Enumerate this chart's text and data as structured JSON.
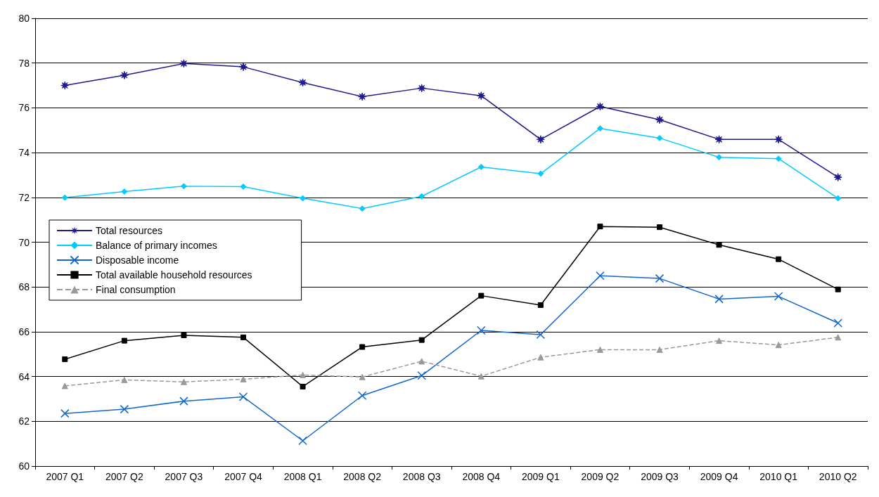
{
  "chart_data": {
    "type": "line",
    "categories": [
      "2007 Q1",
      "2007 Q2",
      "2007 Q3",
      "2007 Q4",
      "2008 Q1",
      "2008 Q2",
      "2008 Q3",
      "2008 Q4",
      "2009 Q1",
      "2009 Q2",
      "2009 Q3",
      "2009 Q4",
      "2010 Q1",
      "2010 Q2"
    ],
    "series": [
      {
        "name": "Total resources",
        "color": "#1f1a8c",
        "marker": "star",
        "values": [
          77.0,
          77.46,
          77.98,
          77.83,
          77.13,
          76.5,
          76.88,
          76.54,
          74.59,
          76.06,
          75.47,
          74.59,
          74.59,
          72.9
        ]
      },
      {
        "name": "Balance of primary incomes",
        "color": "#00ccff",
        "marker": "diamond",
        "values": [
          71.99,
          72.26,
          72.5,
          72.48,
          71.96,
          71.5,
          72.05,
          73.36,
          73.06,
          75.08,
          74.65,
          73.79,
          73.73,
          71.96
        ]
      },
      {
        "name": "Disposable income",
        "color": "#1166cc",
        "marker": "cross",
        "values": [
          62.35,
          62.54,
          62.9,
          63.09,
          61.13,
          63.15,
          64.04,
          66.06,
          65.87,
          68.5,
          68.38,
          67.46,
          67.58,
          66.39
        ]
      },
      {
        "name": "Total available household resources",
        "color": "#000000",
        "marker": "square",
        "values": [
          64.77,
          65.6,
          65.84,
          65.75,
          63.55,
          65.32,
          65.63,
          67.61,
          67.19,
          70.7,
          70.67,
          69.88,
          69.24,
          67.89
        ]
      },
      {
        "name": "Final consumption",
        "color": "#999999",
        "marker": "triangle",
        "line_style": "dashed",
        "values": [
          63.58,
          63.85,
          63.76,
          63.88,
          64.07,
          63.98,
          64.68,
          64.01,
          64.86,
          65.2,
          65.2,
          65.6,
          65.41,
          65.75
        ]
      }
    ],
    "ylim": [
      60,
      80
    ],
    "yticks": [
      60,
      62,
      64,
      66,
      68,
      70,
      72,
      74,
      76,
      78,
      80
    ],
    "grid": "y",
    "legend": "left"
  }
}
